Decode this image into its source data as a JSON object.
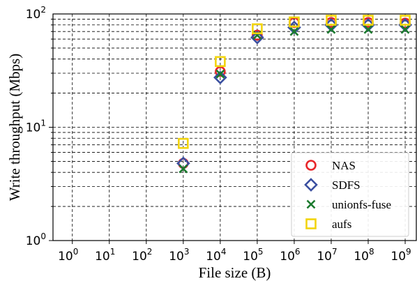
{
  "chart_data": {
    "type": "scatter",
    "xlabel": "File size (B)",
    "ylabel": "Write throughput (Mbps)",
    "xscale": "log",
    "yscale": "log",
    "xlim": [
      0.3,
      2000000000
    ],
    "ylim": [
      1,
      100
    ],
    "grid": true,
    "legend_position": "bottom-right",
    "x_ticks": [
      {
        "base": "10",
        "exp": "0"
      },
      {
        "base": "10",
        "exp": "1"
      },
      {
        "base": "10",
        "exp": "2"
      },
      {
        "base": "10",
        "exp": "3"
      },
      {
        "base": "10",
        "exp": "4"
      },
      {
        "base": "10",
        "exp": "5"
      },
      {
        "base": "10",
        "exp": "6"
      },
      {
        "base": "10",
        "exp": "7"
      },
      {
        "base": "10",
        "exp": "8"
      },
      {
        "base": "10",
        "exp": "9"
      }
    ],
    "y_ticks": [
      {
        "base": "10",
        "exp": "0"
      },
      {
        "base": "10",
        "exp": "1"
      },
      {
        "base": "10",
        "exp": "2"
      }
    ],
    "x": [
      1000,
      10000,
      100000,
      1000000,
      10000000,
      100000000,
      1000000000
    ],
    "series": [
      {
        "name": "NAS",
        "marker": "circle",
        "color": "#e8262a",
        "values": [
          4.8,
          31,
          65,
          84,
          84,
          84,
          83
        ]
      },
      {
        "name": "SDFS",
        "marker": "diamond",
        "color": "#3a4fa0",
        "values": [
          4.8,
          27.5,
          62,
          76,
          80,
          80,
          80
        ]
      },
      {
        "name": "unionfs-fuse",
        "marker": "x",
        "color": "#1b7a2e",
        "values": [
          4.3,
          29.5,
          65,
          70,
          73,
          73,
          73
        ]
      },
      {
        "name": "aufs",
        "marker": "square",
        "color": "#f2d40c",
        "values": [
          7.2,
          38,
          74,
          85,
          88,
          88,
          88
        ]
      }
    ]
  }
}
